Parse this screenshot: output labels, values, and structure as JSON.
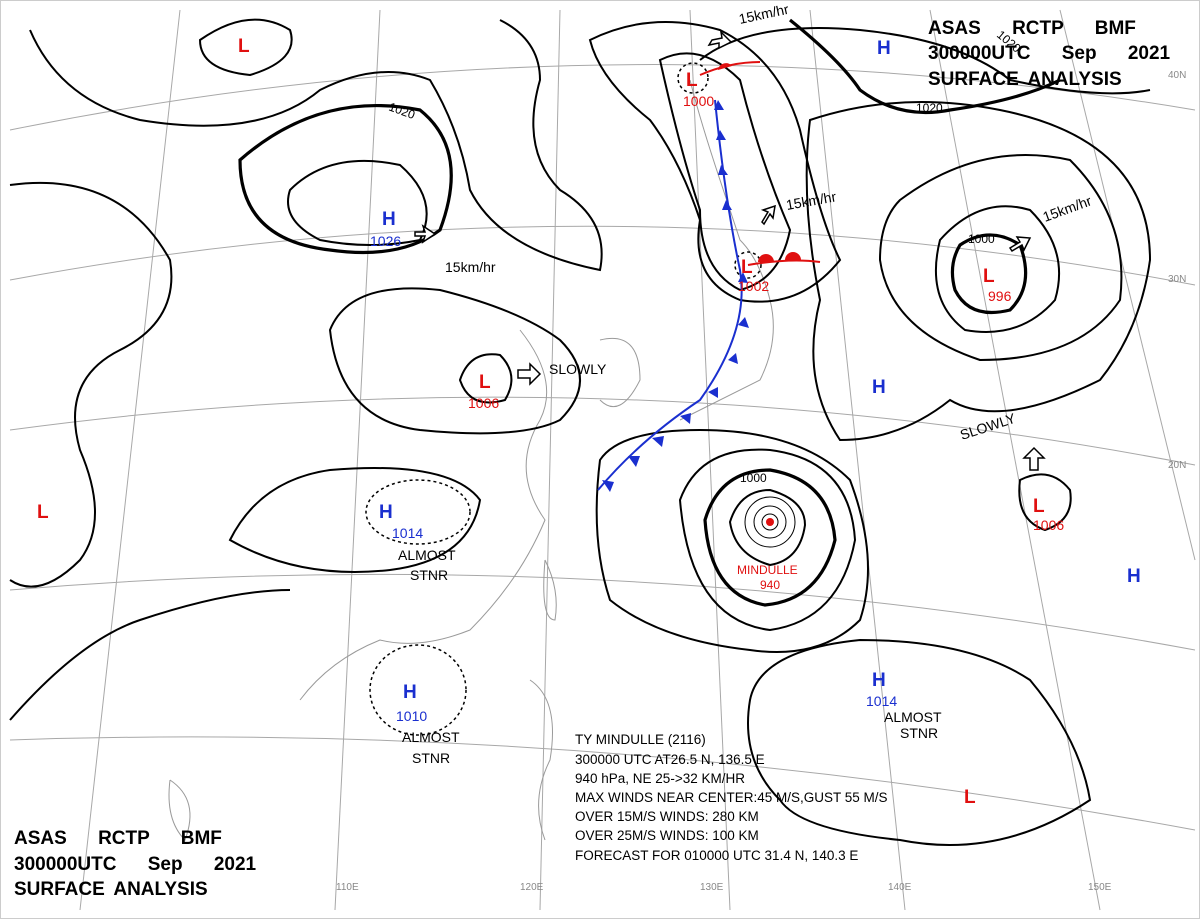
{
  "header": {
    "lines": [
      "ASAS RCTP BMF",
      "300000UTC Sep 2021",
      "SURFACE ANALYSIS"
    ]
  },
  "centers": [
    {
      "symbol": "L"
    },
    {
      "symbol": "H",
      "pressure": 1026
    },
    {
      "symbol": "L",
      "pressure": 1006
    },
    {
      "symbol": "H",
      "pressure": 1014
    },
    {
      "symbol": "H",
      "pressure": 1010
    },
    {
      "symbol": "L",
      "pressure": 1000
    },
    {
      "symbol": "L",
      "pressure": 1002
    },
    {
      "symbol": "L",
      "pressure": 996
    },
    {
      "symbol": "H"
    },
    {
      "symbol": "H"
    },
    {
      "symbol": "L",
      "pressure": 1006
    },
    {
      "symbol": "H"
    },
    {
      "symbol": "H",
      "pressure": 1014
    },
    {
      "symbol": "L"
    },
    {
      "symbol": "L"
    }
  ],
  "movements": [
    "15km/hr",
    "15km/hr",
    "15km/hr",
    "15km/hr",
    "SLOWLY",
    "SLOWLY"
  ],
  "stationary": [
    [
      "ALMOST",
      "STNR"
    ],
    [
      "ALMOST",
      "STNR"
    ],
    [
      "ALMOST",
      "STNR"
    ]
  ],
  "isobar_labels": [
    1020,
    1020,
    1020,
    1000,
    1000
  ],
  "typhoon": {
    "name": "MINDULLE",
    "pressure": 940,
    "info": [
      "TY MINDULLE (2116)",
      "300000 UTC AT26.5 N, 136.5 E",
      "940 hPa, NE 25->32 KM/HR",
      "MAX WINDS NEAR CENTER:45 M/S,GUST 55 M/S",
      "OVER 15M/S WINDS: 280 KM",
      "OVER 25M/S WINDS: 100 KM",
      "FORECAST FOR 010000 UTC 31.4 N, 140.3 E"
    ]
  },
  "grid_labels": [
    "110E",
    "120E",
    "130E",
    "140E",
    "150E",
    "20N",
    "30N",
    "40N"
  ]
}
